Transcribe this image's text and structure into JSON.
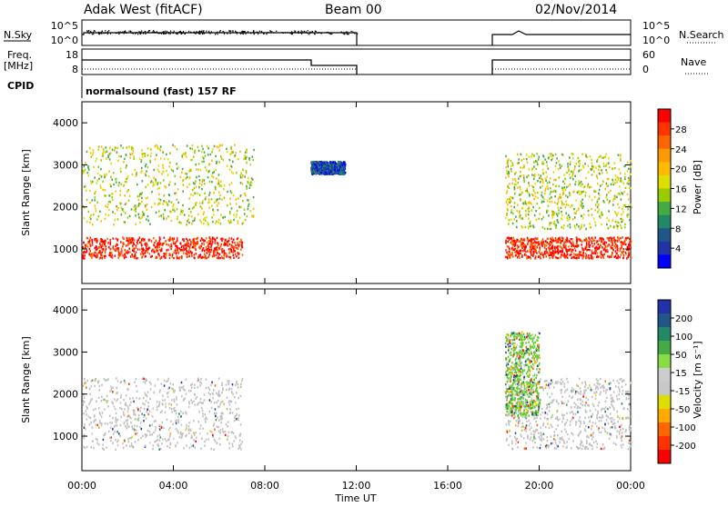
{
  "header": {
    "station": "Adak West (fitACF)",
    "beam": "Beam 00",
    "date": "02/Nov/2014"
  },
  "strips": {
    "nsky_label": "N.Sky",
    "nsearch_label": "N.Search",
    "left_ticks": [
      "10^5",
      "10^0"
    ],
    "right_ticks": [
      "10^5",
      "10^0"
    ],
    "freq_label": "Freq.",
    "freq_unit": "[MHz]",
    "freq_ticks": [
      "18",
      "8"
    ],
    "nave_label": "Nave",
    "nave_ticks": [
      "60",
      "0"
    ],
    "cpid_label": "CPID",
    "cpid_text": "normalsound (fast) 157 RF"
  },
  "axes": {
    "ylabel": "Slant Range [km]",
    "yticks": [
      "4000",
      "3000",
      "2000",
      "1000"
    ],
    "xticks": [
      "00:00",
      "04:00",
      "08:00",
      "12:00",
      "16:00",
      "20:00",
      "00:00"
    ],
    "xlabel": "Time UT"
  },
  "colorbars": {
    "power": {
      "label": "Power [dB]",
      "ticks": [
        "28",
        "24",
        "20",
        "16",
        "12",
        "8",
        "4"
      ],
      "colors": [
        "#ff0000",
        "#ff3300",
        "#ff6600",
        "#ff9900",
        "#ffbb00",
        "#dddd00",
        "#99cc00",
        "#44aa44",
        "#228866",
        "#225588",
        "#2233aa",
        "#0000ff"
      ]
    },
    "velocity": {
      "label": "Velocity [m s⁻¹]",
      "ticks": [
        "200",
        "100",
        "50",
        "15",
        "-15",
        "-50",
        "-100",
        "-200"
      ],
      "colors": [
        "#2233aa",
        "#225588",
        "#228866",
        "#44aa44",
        "#88dd44",
        "#cccccc",
        "#c8c8c8",
        "#dddd00",
        "#ffaa00",
        "#ff6600",
        "#ff3300",
        "#ff0000"
      ]
    }
  },
  "chart_data": [
    {
      "type": "heatmap",
      "name": "Power",
      "x_range_hours": [
        0,
        24
      ],
      "y_range_km": [
        180,
        4500
      ],
      "data_gaps_hours": [
        [
          12,
          18
        ]
      ],
      "scatter_bands": [
        {
          "x": [
            0,
            7
          ],
          "y_start_km": 800,
          "y_end_km": 1300,
          "dominant_db": 28
        },
        {
          "x": [
            0,
            7.5
          ],
          "y_start_km": 1600,
          "y_end_km": 3500,
          "dominant_db": 16
        },
        {
          "x": [
            10,
            11.5
          ],
          "y_start_km": 2800,
          "y_end_km": 3100,
          "dominant_db": 6
        },
        {
          "x": [
            18.5,
            24
          ],
          "y_start_km": 800,
          "y_end_km": 1300,
          "dominant_db": 28
        },
        {
          "x": [
            18.5,
            24
          ],
          "y_start_km": 1500,
          "y_end_km": 3300,
          "dominant_db": 16
        }
      ]
    },
    {
      "type": "heatmap",
      "name": "Velocity",
      "x_range_hours": [
        0,
        24
      ],
      "y_range_km": [
        180,
        4500
      ],
      "data_gaps_hours": [
        [
          12,
          18
        ]
      ],
      "scatter_bands": [
        {
          "x": [
            0,
            7
          ],
          "y_start_km": 700,
          "y_end_km": 2400,
          "dominant_ms": 0
        },
        {
          "x": [
            18.5,
            24
          ],
          "y_start_km": 700,
          "y_end_km": 2400,
          "dominant_ms": 0
        },
        {
          "x": [
            18.5,
            20
          ],
          "y_start_km": 1500,
          "y_end_km": 3500,
          "dominant_ms": 30
        }
      ]
    }
  ]
}
